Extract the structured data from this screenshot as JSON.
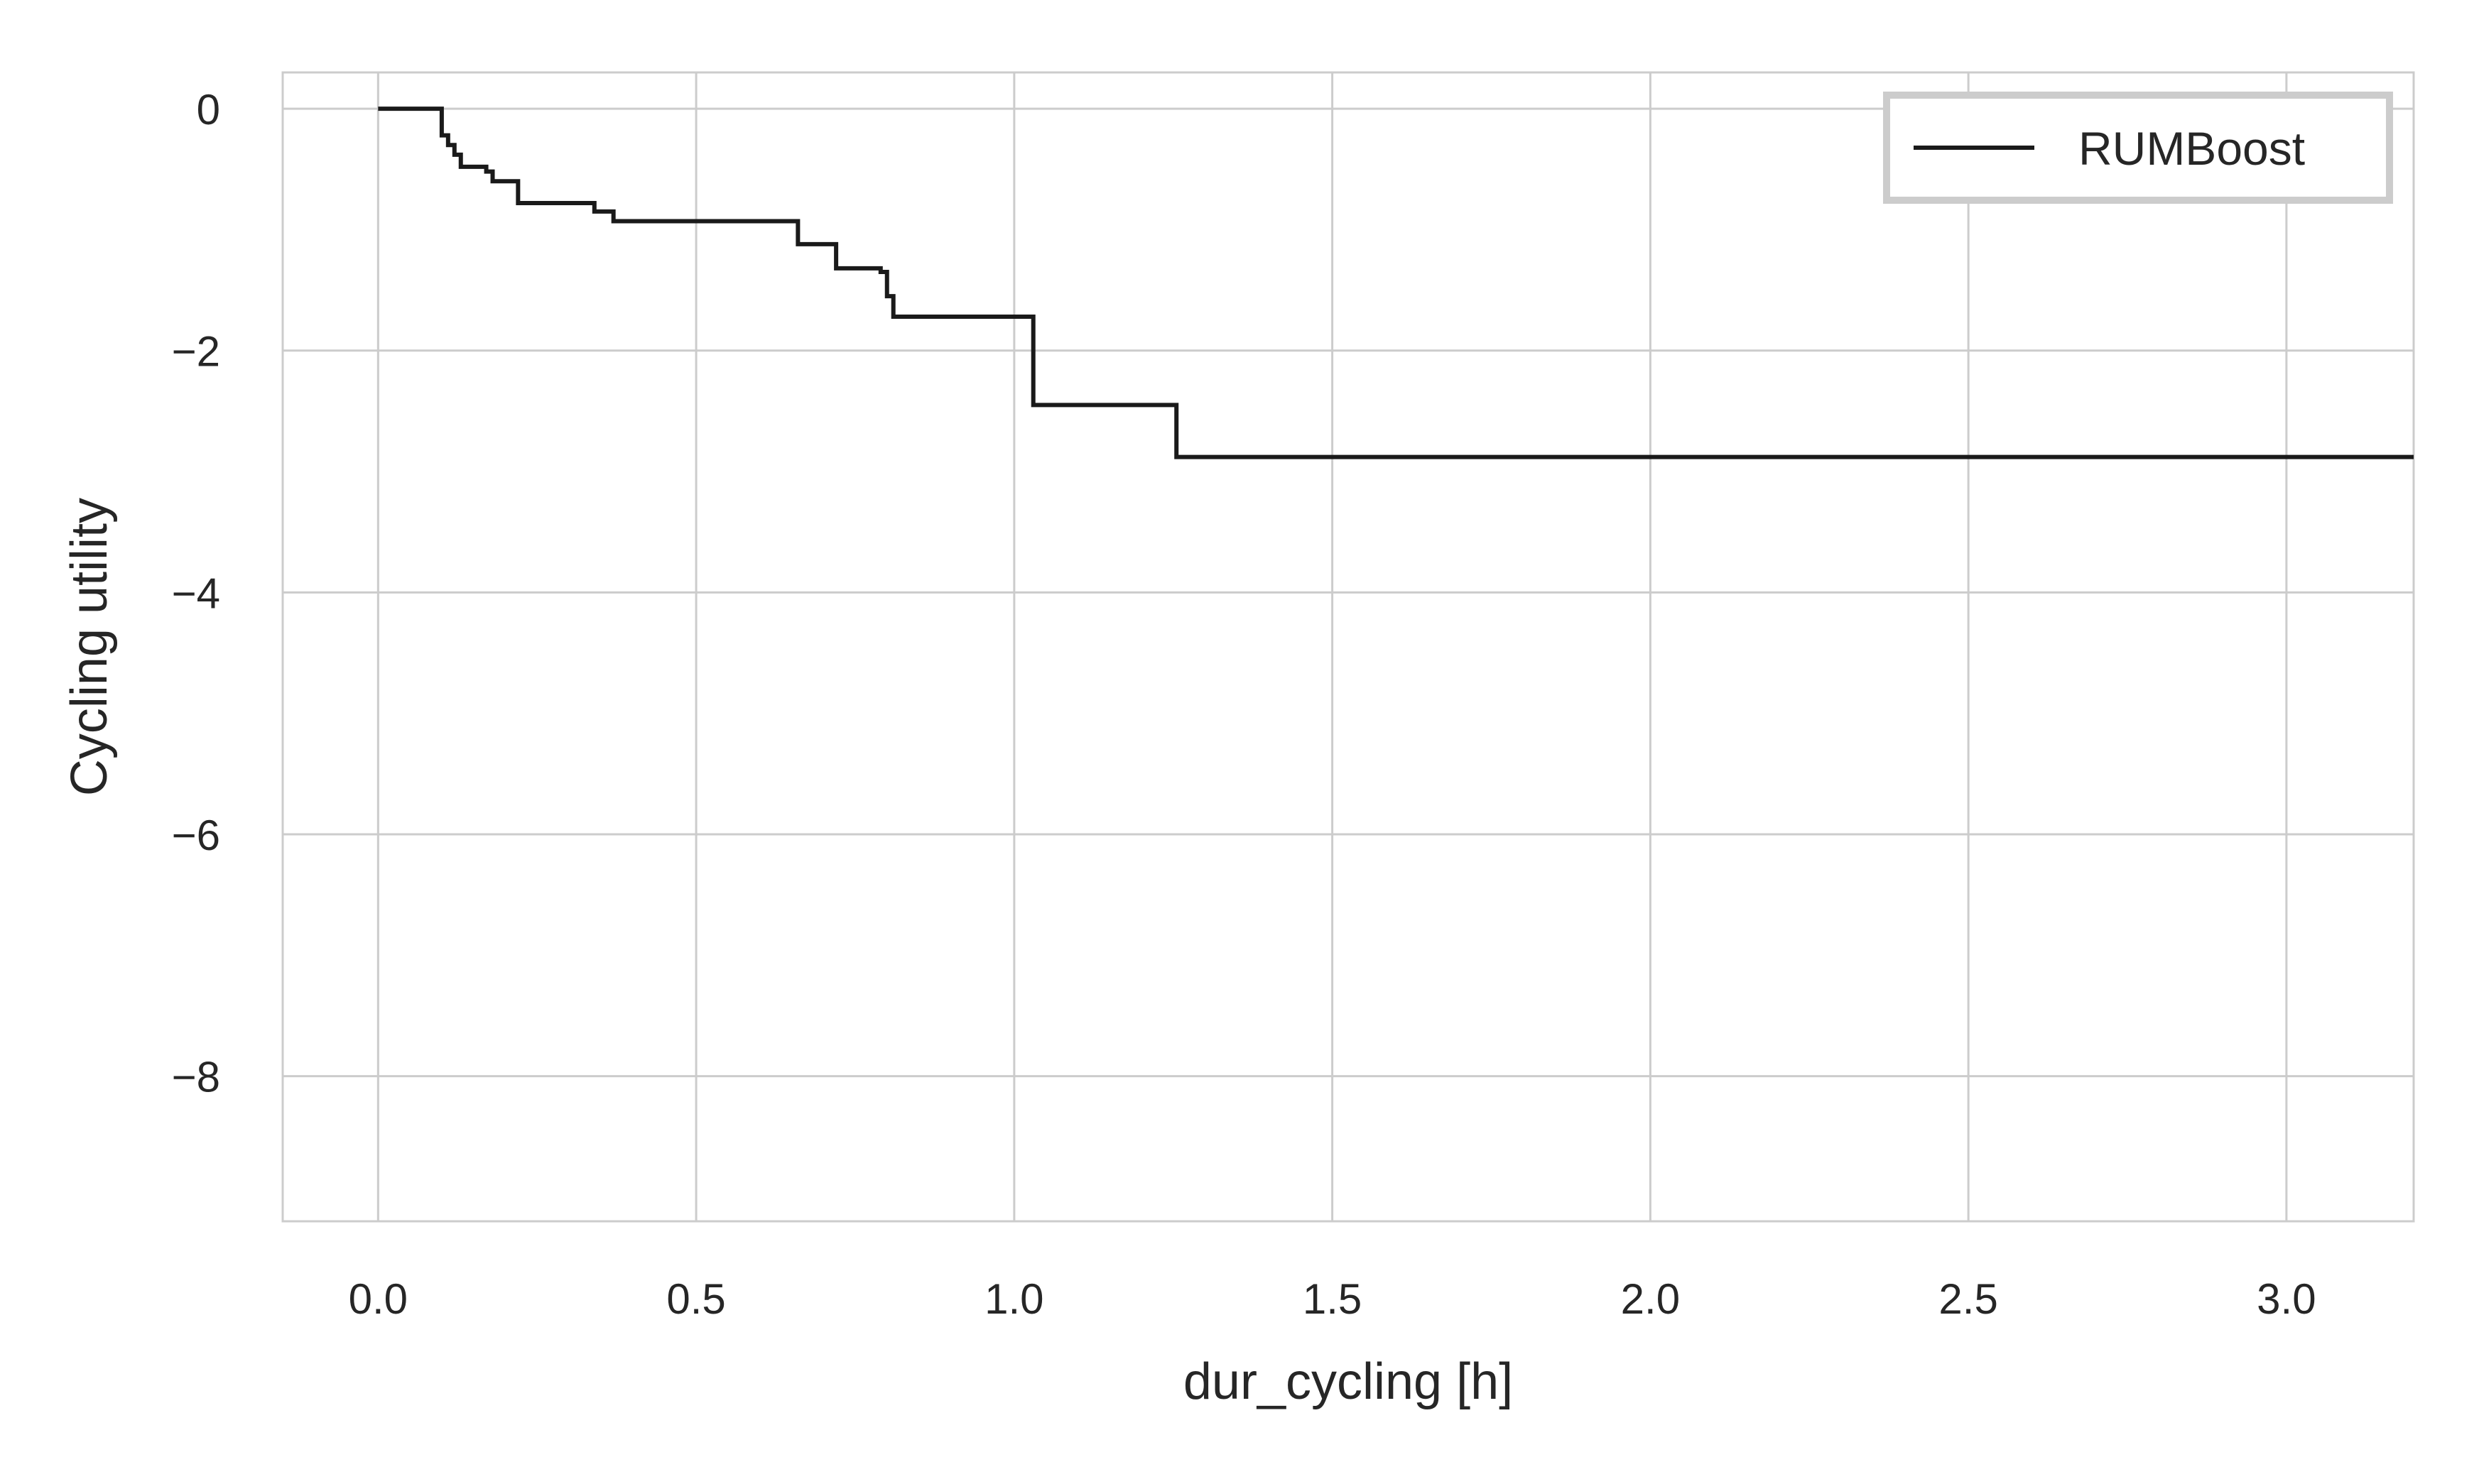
{
  "chart_data": {
    "type": "line",
    "title": "",
    "xlabel": "dur_cycling [h]",
    "ylabel": "Cycling utility",
    "xlim": [
      -0.15,
      3.2
    ],
    "ylim": [
      -9.2,
      0.3
    ],
    "xticks": [
      0.0,
      0.5,
      1.0,
      1.5,
      2.0,
      2.5,
      3.0
    ],
    "xtick_labels": [
      "0.0",
      "0.5",
      "1.0",
      "1.5",
      "2.0",
      "2.5",
      "3.0"
    ],
    "yticks": [
      0,
      -2,
      -4,
      -6,
      -8
    ],
    "ytick_labels": [
      "0",
      "−2",
      "−4",
      "−6",
      "−8"
    ],
    "grid": true,
    "legend_position": "upper right",
    "series": [
      {
        "name": "RUMBoost",
        "color": "#1a1a1a",
        "style": "step",
        "x": [
          0.0,
          0.1,
          0.11,
          0.12,
          0.13,
          0.17,
          0.18,
          0.22,
          0.34,
          0.37,
          0.66,
          0.72,
          0.79,
          0.8,
          0.81,
          1.03,
          1.255,
          3.2
        ],
        "y": [
          0.0,
          -0.22,
          -0.3,
          -0.38,
          -0.48,
          -0.52,
          -0.6,
          -0.78,
          -0.85,
          -0.93,
          -1.12,
          -1.32,
          -1.35,
          -1.55,
          -1.72,
          -2.45,
          -2.88,
          -2.88
        ]
      }
    ]
  }
}
